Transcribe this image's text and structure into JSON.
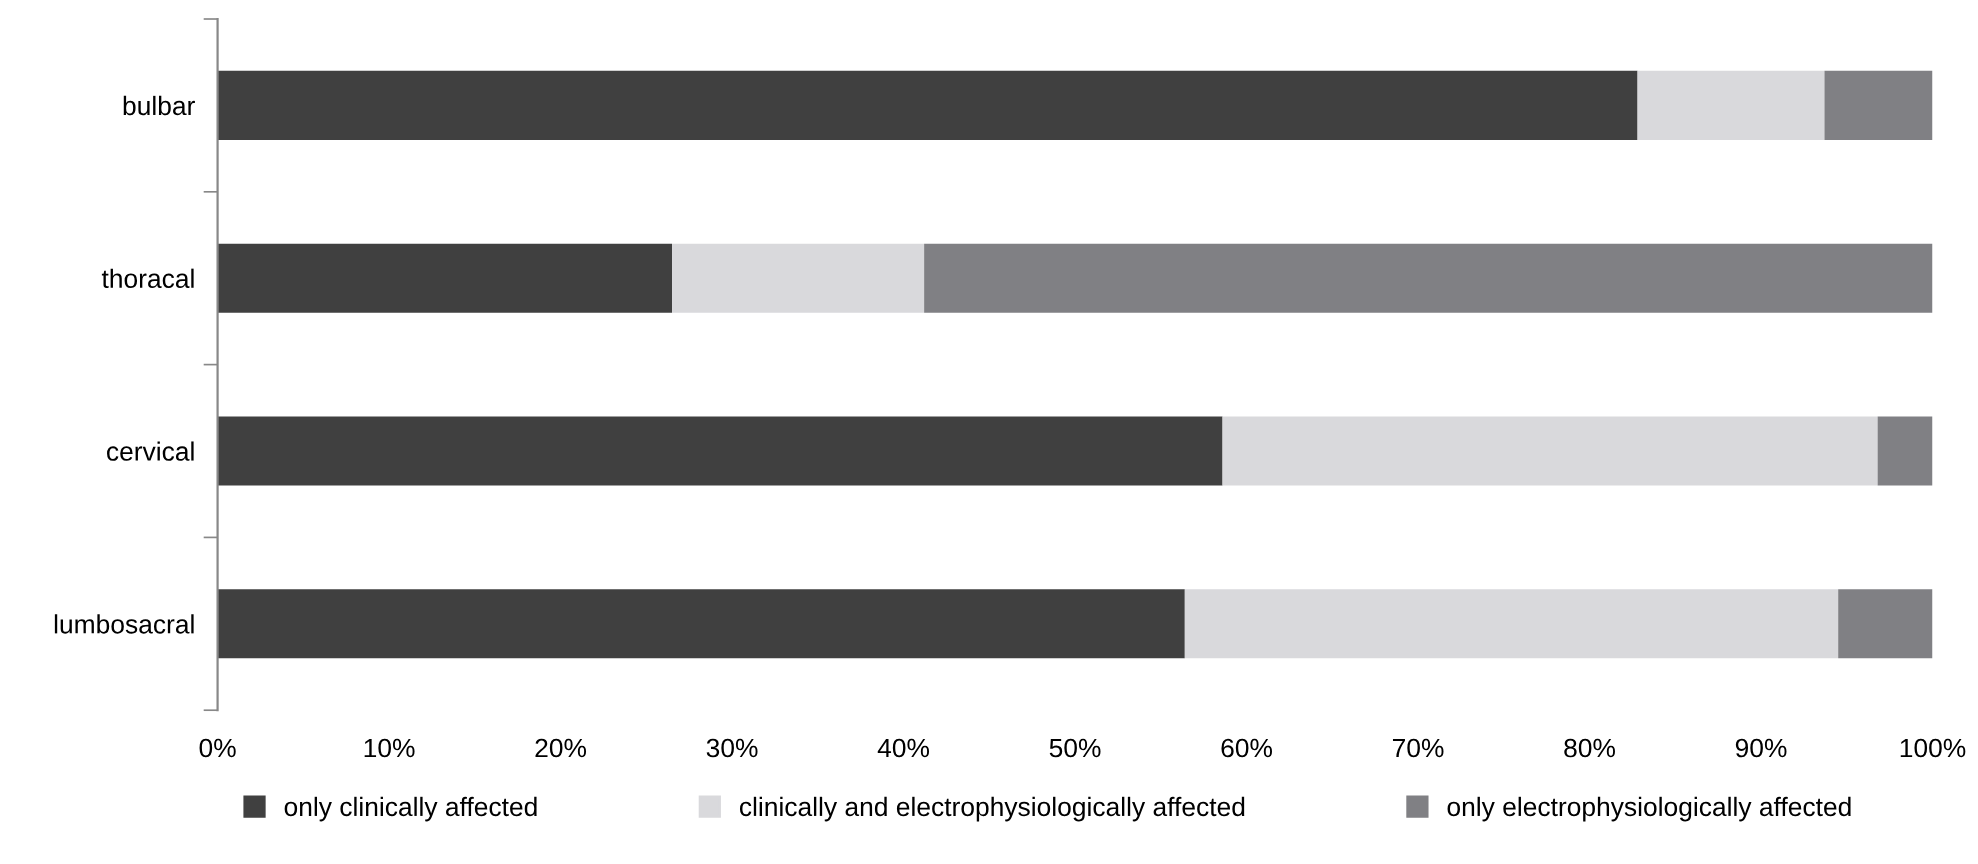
{
  "chart_data": {
    "type": "bar",
    "orientation": "horizontal",
    "stacked": true,
    "categories": [
      "bulbar",
      "thoracal",
      "cervical",
      "lumbosacral"
    ],
    "series": [
      {
        "name": "only clinically affected",
        "color": "#404040",
        "values": [
          82.8,
          26.5,
          58.6,
          56.4
        ]
      },
      {
        "name": "clinically and electrophysiologically affected",
        "color": "#d9d9dc",
        "values": [
          10.9,
          14.7,
          38.2,
          38.1
        ]
      },
      {
        "name": "only electrophysiologically affected",
        "color": "#808084",
        "values": [
          6.3,
          58.8,
          3.2,
          5.5
        ]
      }
    ],
    "xlim": [
      0,
      100
    ],
    "xticks": [
      {
        "value": 0,
        "label": "0%"
      },
      {
        "value": 10,
        "label": "10%"
      },
      {
        "value": 20,
        "label": "20%"
      },
      {
        "value": 30,
        "label": "30%"
      },
      {
        "value": 40,
        "label": "40%"
      },
      {
        "value": 50,
        "label": "50%"
      },
      {
        "value": 60,
        "label": "60%"
      },
      {
        "value": 70,
        "label": "70%"
      },
      {
        "value": 80,
        "label": "80%"
      },
      {
        "value": 90,
        "label": "90%"
      },
      {
        "value": 100,
        "label": "100%"
      }
    ],
    "grid": false,
    "legend": "bottom"
  }
}
